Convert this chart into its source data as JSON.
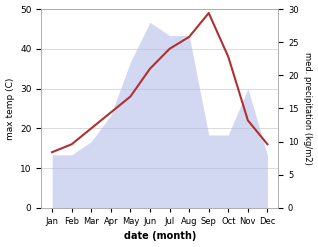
{
  "months": [
    "Jan",
    "Feb",
    "Mar",
    "Apr",
    "May",
    "Jun",
    "Jul",
    "Aug",
    "Sep",
    "Oct",
    "Nov",
    "Dec"
  ],
  "temperature": [
    14,
    16,
    20,
    24,
    28,
    35,
    40,
    43,
    49,
    38,
    22,
    16
  ],
  "precipitation": [
    8,
    8,
    10,
    14,
    22,
    28,
    26,
    26,
    11,
    11,
    18,
    8
  ],
  "temp_color": "#b03030",
  "precip_color": "#b0b8e8",
  "precip_alpha": 0.55,
  "temp_ylim": [
    0,
    50
  ],
  "precip_ylim": [
    0,
    30
  ],
  "temp_yticks": [
    0,
    10,
    20,
    30,
    40,
    50
  ],
  "precip_yticks": [
    0,
    5,
    10,
    15,
    20,
    25,
    30
  ],
  "xlabel": "date (month)",
  "ylabel_left": "max temp (C)",
  "ylabel_right": "med. precipitation (kg/m2)",
  "bg_color": "#ffffff",
  "line_width": 1.5,
  "grid_color": "#cccccc"
}
